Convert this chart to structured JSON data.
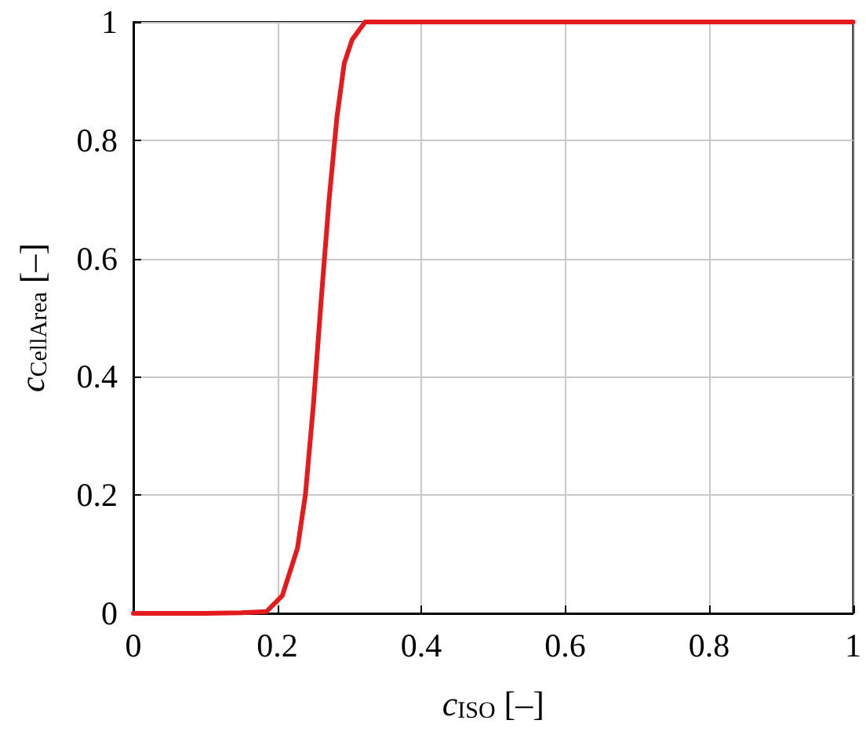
{
  "chart_data": {
    "type": "line",
    "xlabel": "c$_{ISO}$ [–]",
    "ylabel": "c$_{CellArea}$ [–]",
    "x": [
      0,
      0.1,
      0.15,
      0.185,
      0.207,
      0.228,
      0.239,
      0.25,
      0.261,
      0.272,
      0.283,
      0.293,
      0.304,
      0.322,
      0.335,
      0.5,
      0.75,
      1
    ],
    "series": [
      {
        "color": "#e41a1c",
        "values": [
          0,
          0,
          0.001,
          0.003,
          0.03,
          0.11,
          0.2,
          0.35,
          0.53,
          0.7,
          0.84,
          0.93,
          0.97,
          1,
          1,
          1,
          1,
          1
        ]
      }
    ],
    "xlim": [
      0,
      1
    ],
    "xticks": [
      0,
      0.2,
      0.4,
      0.6,
      0.8,
      1
    ],
    "ylim": [
      0,
      1
    ],
    "yticks": [
      0,
      0.2,
      0.4,
      0.6,
      0.8,
      1
    ],
    "grid": true,
    "marker": "none",
    "line_style": "solid"
  }
}
